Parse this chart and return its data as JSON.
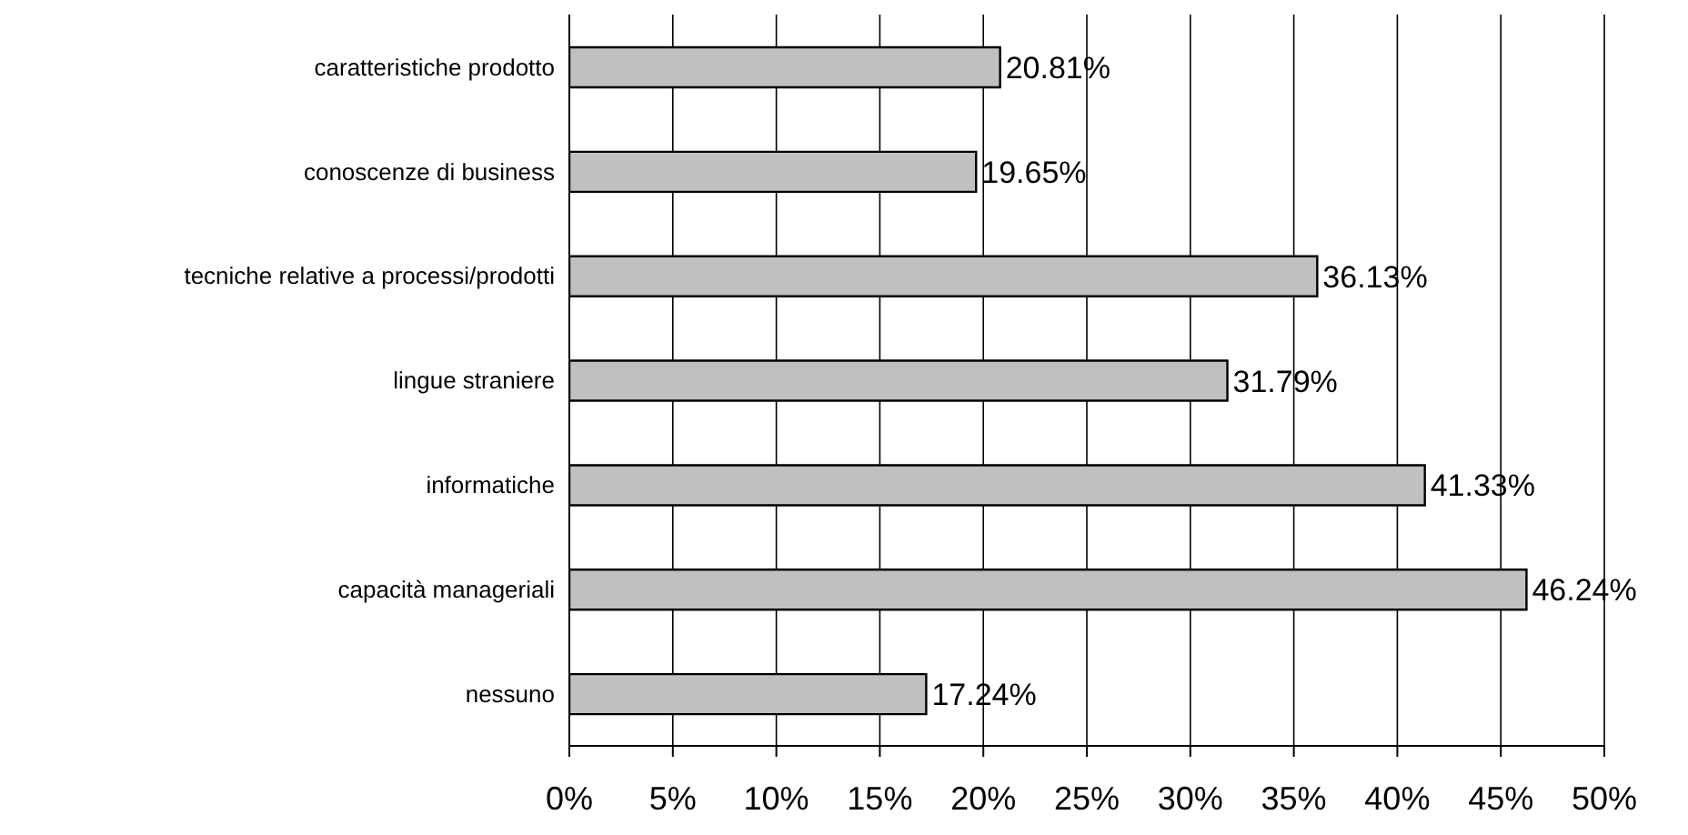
{
  "chart_data": {
    "type": "bar",
    "orientation": "horizontal",
    "categories": [
      "caratteristiche prodotto",
      "conoscenze di business",
      "tecniche relative a processi/prodotti",
      "lingue straniere",
      "informatiche",
      "capacità manageriali",
      "nessuno"
    ],
    "values": [
      20.81,
      19.65,
      36.13,
      31.79,
      41.33,
      46.24,
      17.24
    ],
    "value_labels": [
      "20.81%",
      "19.65%",
      "36.13%",
      "31.79%",
      "41.33%",
      "46.24%",
      "17.24%"
    ],
    "color": "#c0c0c0",
    "xlim": [
      0,
      50
    ],
    "xticks": [
      {
        "value": 0,
        "label": "0%"
      },
      {
        "value": 5,
        "label": "5%"
      },
      {
        "value": 10,
        "label": "10%"
      },
      {
        "value": 15,
        "label": "15%"
      },
      {
        "value": 20,
        "label": "20%"
      },
      {
        "value": 25,
        "label": "25%"
      },
      {
        "value": 30,
        "label": "30%"
      },
      {
        "value": 35,
        "label": "35%"
      },
      {
        "value": 40,
        "label": "40%"
      },
      {
        "value": 45,
        "label": "45%"
      },
      {
        "value": 50,
        "label": "50%"
      }
    ],
    "grid": "x",
    "legend": false
  }
}
